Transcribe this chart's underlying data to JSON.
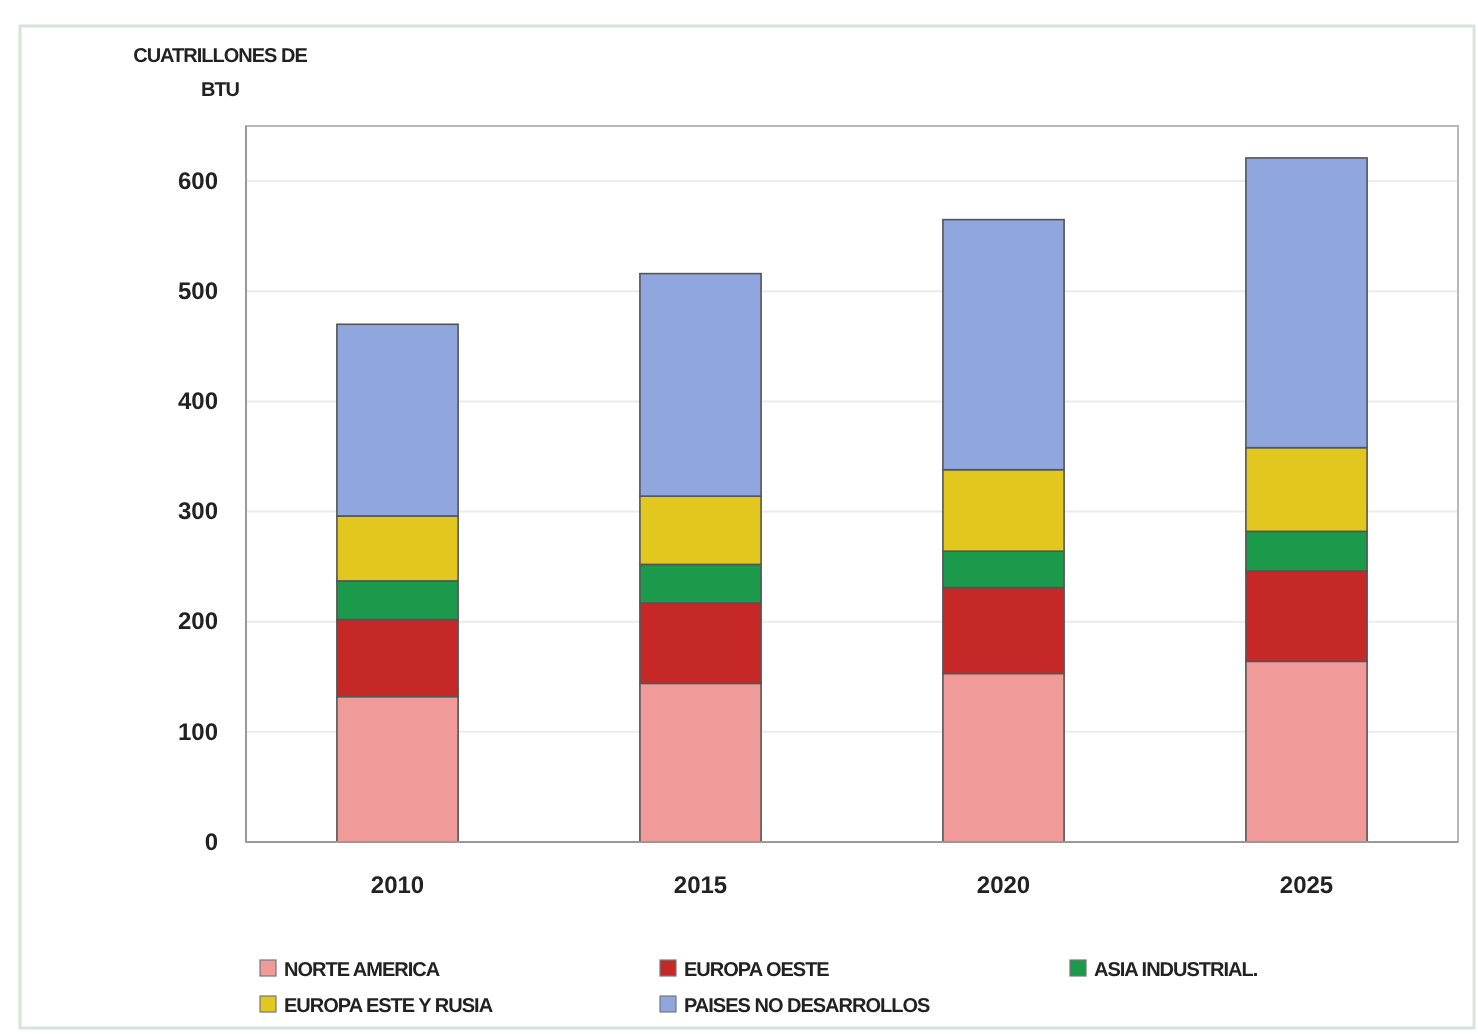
{
  "chart_data": {
    "type": "bar",
    "stacked": true,
    "ylabel": "CUATRILLONES DE BTU",
    "categories": [
      "2010",
      "2015",
      "2020",
      "2025"
    ],
    "series": [
      {
        "name": "NORTE AMERICA",
        "color": "#f09a9a",
        "values": [
          132,
          144,
          153,
          164
        ]
      },
      {
        "name": "EUROPA OESTE",
        "color": "#c62828",
        "values": [
          70,
          73,
          78,
          82
        ]
      },
      {
        "name": "ASIA INDUSTRIAL.",
        "color": "#1a9a4a",
        "values": [
          35,
          35,
          33,
          36
        ]
      },
      {
        "name": "EUROPA ESTE Y RUSIA",
        "color": "#e2c81e",
        "values": [
          59,
          62,
          74,
          76
        ]
      },
      {
        "name": "PAISES NO DESARROLLOS",
        "color": "#8fa6de",
        "values": [
          174,
          202,
          227,
          263
        ]
      }
    ],
    "ylim": [
      0,
      650
    ],
    "yticks": [
      0,
      100,
      200,
      300,
      400,
      500,
      600
    ],
    "grid": "y",
    "legend": "bottom"
  }
}
